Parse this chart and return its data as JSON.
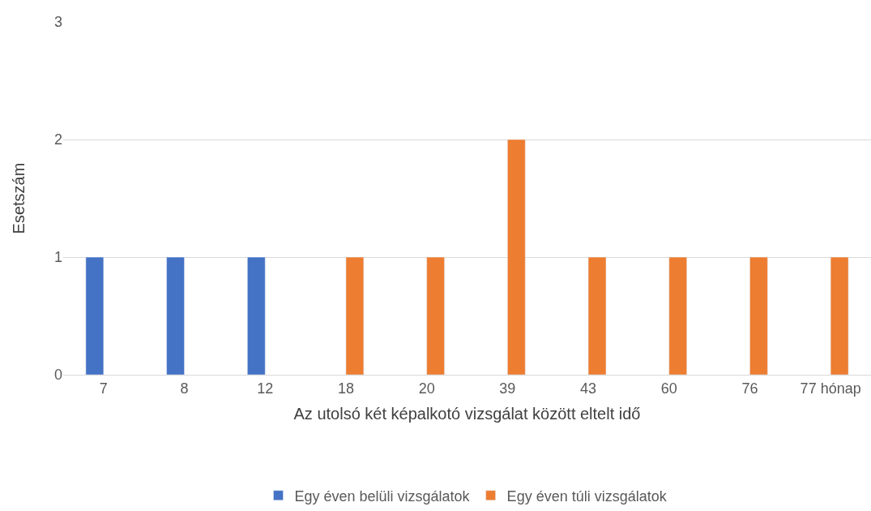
{
  "chart_data": {
    "type": "bar",
    "xlabel": "Az utolsó két képalkotó vizsgálat között eltelt idő",
    "ylabel": "Esetszám",
    "categories": [
      "7",
      "8",
      "12",
      "18",
      "20",
      "39",
      "43",
      "60",
      "76",
      "77 hónap"
    ],
    "series": [
      {
        "name": "Egy éven belüli vizsgálatok",
        "color": "#4472c4",
        "values": [
          1,
          1,
          1,
          null,
          null,
          null,
          null,
          null,
          null,
          null
        ]
      },
      {
        "name": "Egy éven túli vizsgálatok",
        "color": "#ed7d31",
        "values": [
          null,
          null,
          null,
          1,
          1,
          2,
          1,
          1,
          1,
          1
        ]
      }
    ],
    "ylim": [
      0,
      3
    ],
    "yticks": [
      0,
      1,
      2,
      3
    ],
    "grid": "y",
    "legend": "bottom"
  }
}
